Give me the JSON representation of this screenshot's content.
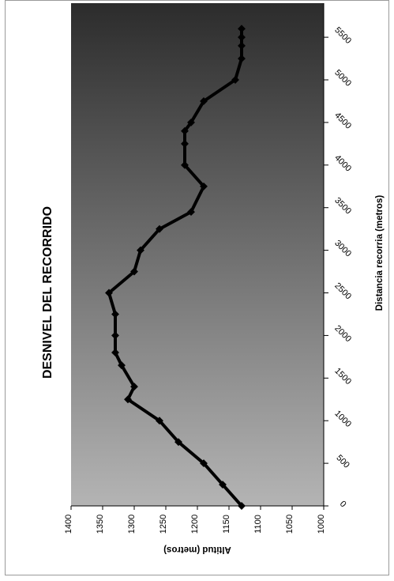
{
  "chart_data": {
    "type": "line",
    "title": "DESNIVEL DEL RECORRIDO",
    "xlabel": "Distancia recorria (metros)",
    "ylabel": "Altitud (metros)",
    "xlim": [
      0,
      5900
    ],
    "ylim": [
      1000,
      1400
    ],
    "x_ticks": [
      0,
      500,
      1000,
      1500,
      2000,
      2500,
      3000,
      3500,
      4000,
      4500,
      5000,
      5500
    ],
    "y_ticks": [
      1000,
      1050,
      1100,
      1150,
      1200,
      1250,
      1300,
      1350,
      1400
    ],
    "grid": false,
    "legend": "none",
    "rotation": "rotated 90 degrees counter-clockwise",
    "background": "gradient from light gray (#b4b4b4) to dark gray (#2c2c2c)",
    "line_color": "#000000",
    "series": [
      {
        "x": [
          0,
          250,
          500,
          750,
          1000,
          1250,
          1400,
          1650,
          1800,
          2000,
          2250,
          2500,
          2750,
          3000,
          3250,
          3450,
          3750,
          4000,
          4250,
          4400,
          4500,
          4750,
          5000,
          5250,
          5400,
          5500,
          5600
        ],
        "y": [
          1130,
          1160,
          1190,
          1230,
          1260,
          1310,
          1300,
          1320,
          1330,
          1330,
          1330,
          1340,
          1300,
          1290,
          1260,
          1210,
          1190,
          1220,
          1220,
          1220,
          1210,
          1190,
          1140,
          1130,
          1130,
          1130,
          1130
        ]
      }
    ]
  }
}
